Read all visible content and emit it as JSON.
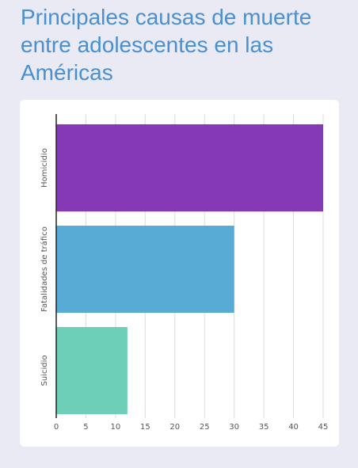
{
  "title": "Principales causas de muerte entre adolescentes en las Américas",
  "chart_data": {
    "type": "bar",
    "orientation": "horizontal",
    "categories": [
      "Homicidio",
      "Fatalidades de tráfico",
      "Suicidio"
    ],
    "values": [
      45,
      30,
      12
    ],
    "colors": [
      "#8539b5",
      "#57abd4",
      "#6dcfb6"
    ],
    "xlim": [
      0,
      45
    ],
    "xticks": [
      0,
      5,
      10,
      15,
      20,
      25,
      30,
      35,
      40,
      45
    ],
    "grid": true,
    "legend": "none"
  }
}
